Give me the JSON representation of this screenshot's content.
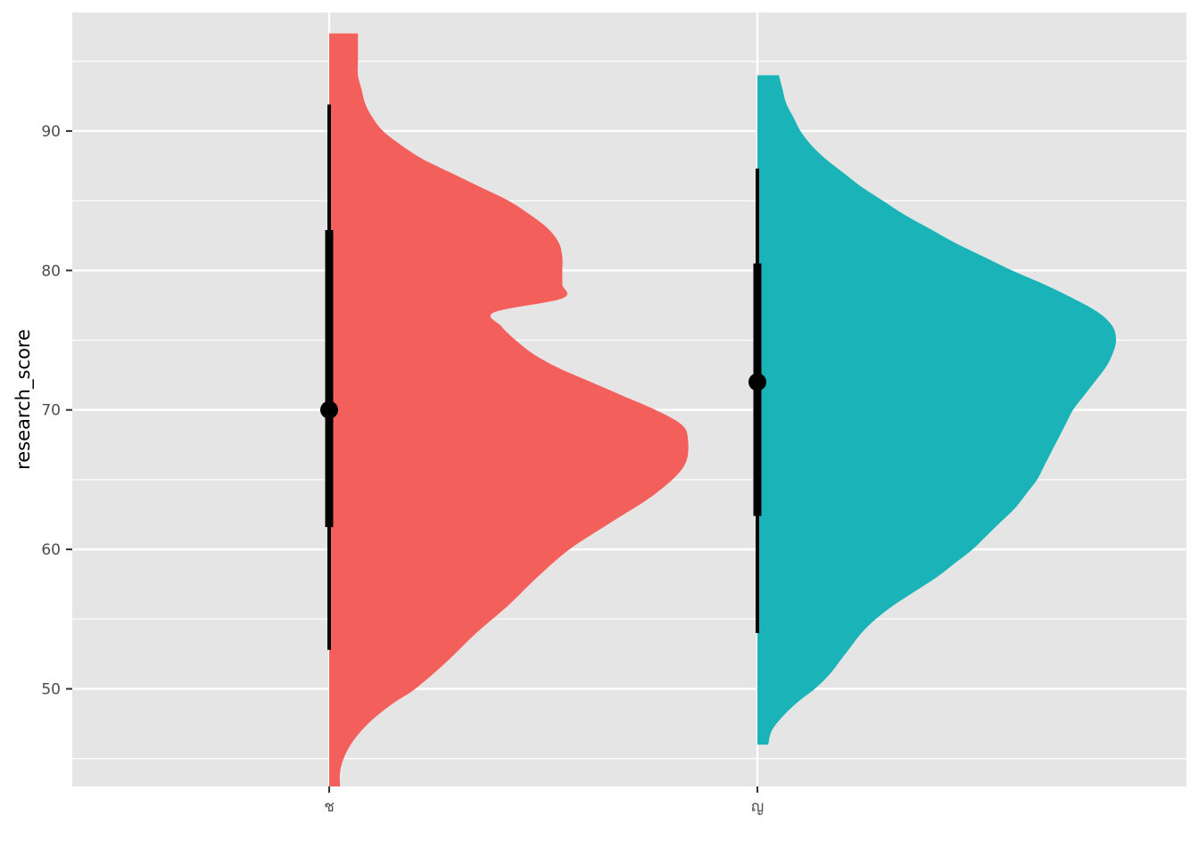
{
  "chart_data": {
    "type": "half-violin",
    "title": "",
    "xlabel": "",
    "ylabel": "research_score",
    "ylim": [
      43.0,
      98.5
    ],
    "y_ticks": [
      50,
      60,
      70,
      80,
      90
    ],
    "grid": true,
    "legend": "none",
    "colors": {
      "panel": "#e5e5e5",
      "grid": "#ffffff",
      "tick": "#4d4d4d",
      "point": "#000000"
    },
    "categories": [
      "ช",
      "ญ"
    ],
    "series": [
      {
        "category": "ช",
        "color": "#f35f5b",
        "y_range": [
          43.0,
          97.0
        ],
        "density": [
          [
            43.0,
            0.03
          ],
          [
            44.0,
            0.03
          ],
          [
            45.0,
            0.04
          ],
          [
            46.0,
            0.06
          ],
          [
            47.0,
            0.09
          ],
          [
            48.0,
            0.13
          ],
          [
            49.0,
            0.18
          ],
          [
            50.0,
            0.24
          ],
          [
            52.0,
            0.33
          ],
          [
            54.0,
            0.41
          ],
          [
            56.0,
            0.5
          ],
          [
            58.0,
            0.58
          ],
          [
            60.0,
            0.67
          ],
          [
            62.0,
            0.79
          ],
          [
            64.0,
            0.91
          ],
          [
            66.0,
            0.99
          ],
          [
            68.0,
            1.0
          ],
          [
            69.0,
            0.98
          ],
          [
            70.0,
            0.91
          ],
          [
            71.0,
            0.82
          ],
          [
            72.0,
            0.73
          ],
          [
            73.0,
            0.64
          ],
          [
            74.0,
            0.57
          ],
          [
            75.0,
            0.52
          ],
          [
            76.0,
            0.48
          ],
          [
            77.0,
            0.46
          ],
          [
            78.0,
            0.65
          ],
          [
            79.0,
            0.65
          ],
          [
            80.0,
            0.65
          ],
          [
            81.0,
            0.65
          ],
          [
            82.0,
            0.64
          ],
          [
            83.0,
            0.61
          ],
          [
            84.0,
            0.56
          ],
          [
            85.0,
            0.5
          ],
          [
            86.0,
            0.42
          ],
          [
            87.0,
            0.34
          ],
          [
            88.0,
            0.26
          ],
          [
            89.0,
            0.2
          ],
          [
            90.0,
            0.15
          ],
          [
            91.0,
            0.12
          ],
          [
            92.0,
            0.1
          ],
          [
            93.0,
            0.09
          ],
          [
            94.0,
            0.08
          ],
          [
            95.0,
            0.08
          ],
          [
            96.0,
            0.08
          ],
          [
            97.0,
            0.08
          ]
        ],
        "median": 70,
        "inner_interval": [
          61.6,
          82.9
        ],
        "outer_interval": [
          52.8,
          91.9
        ]
      },
      {
        "category": "ญ",
        "color": "#19b3b8",
        "y_range": [
          46.0,
          94.0
        ],
        "density": [
          [
            46.0,
            0.03
          ],
          [
            47.0,
            0.04
          ],
          [
            48.0,
            0.07
          ],
          [
            49.0,
            0.11
          ],
          [
            50.0,
            0.16
          ],
          [
            51.0,
            0.2
          ],
          [
            52.0,
            0.23
          ],
          [
            53.0,
            0.26
          ],
          [
            54.0,
            0.29
          ],
          [
            55.0,
            0.33
          ],
          [
            56.0,
            0.38
          ],
          [
            57.0,
            0.44
          ],
          [
            58.0,
            0.5
          ],
          [
            59.0,
            0.55
          ],
          [
            60.0,
            0.6
          ],
          [
            61.0,
            0.64
          ],
          [
            62.0,
            0.68
          ],
          [
            63.0,
            0.72
          ],
          [
            64.0,
            0.75
          ],
          [
            65.0,
            0.78
          ],
          [
            66.0,
            0.8
          ],
          [
            67.0,
            0.82
          ],
          [
            68.0,
            0.84
          ],
          [
            69.0,
            0.86
          ],
          [
            70.0,
            0.88
          ],
          [
            71.0,
            0.91
          ],
          [
            72.0,
            0.94
          ],
          [
            73.0,
            0.97
          ],
          [
            74.0,
            0.99
          ],
          [
            75.0,
            1.0
          ],
          [
            76.0,
            0.99
          ],
          [
            77.0,
            0.95
          ],
          [
            78.0,
            0.88
          ],
          [
            79.0,
            0.8
          ],
          [
            80.0,
            0.71
          ],
          [
            81.0,
            0.63
          ],
          [
            82.0,
            0.55
          ],
          [
            83.0,
            0.48
          ],
          [
            84.0,
            0.41
          ],
          [
            85.0,
            0.35
          ],
          [
            86.0,
            0.29
          ],
          [
            87.0,
            0.24
          ],
          [
            88.0,
            0.19
          ],
          [
            89.0,
            0.15
          ],
          [
            90.0,
            0.12
          ],
          [
            91.0,
            0.1
          ],
          [
            92.0,
            0.08
          ],
          [
            93.0,
            0.07
          ],
          [
            94.0,
            0.06
          ]
        ],
        "median": 72,
        "inner_interval": [
          62.4,
          80.5
        ],
        "outer_interval": [
          54.0,
          87.3
        ]
      }
    ]
  }
}
